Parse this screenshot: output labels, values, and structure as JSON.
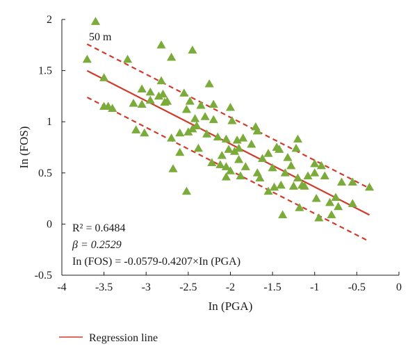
{
  "chart_data": {
    "type": "scatter",
    "xlabel": "In (PGA)",
    "ylabel": "In (FOS)",
    "xlim": [
      -4,
      0
    ],
    "ylim": [
      -0.5,
      2
    ],
    "xticks": [
      -4,
      -3.5,
      -3,
      -2.5,
      -2,
      -1.5,
      -1,
      -0.5,
      0
    ],
    "xtick_labels": [
      "-4",
      "-3.5",
      "-3",
      "-2.5",
      "-2",
      "-1.5",
      "-1",
      "-0.5",
      "0"
    ],
    "yticks": [
      -0.5,
      0,
      0.5,
      1,
      1.5,
      2
    ],
    "ytick_labels": [
      "-0.5",
      "0",
      "0.5",
      "1",
      "1.5",
      "2"
    ],
    "grid": false,
    "annotation_top": "50 m",
    "stats": {
      "r2": "R² = 0.6484",
      "beta": "β = 0.2529",
      "equation": "In (FOS) = -0.0579-0.4207×In (PGA)"
    },
    "legend": {
      "label": "Regression line",
      "position": "bottom-left"
    },
    "colors": {
      "points": "#7bab3a",
      "regression": "#d23a2a",
      "axis": "#1a1a1a"
    },
    "regression": {
      "intercept": -0.0579,
      "slope": -0.4207,
      "x_range": [
        -3.7,
        -0.35
      ],
      "band_offset": 0.26
    },
    "points": [
      {
        "x": -3.6,
        "y": 1.98
      },
      {
        "x": -3.7,
        "y": 1.61
      },
      {
        "x": -3.5,
        "y": 1.43
      },
      {
        "x": -3.5,
        "y": 1.15
      },
      {
        "x": -3.45,
        "y": 1.15
      },
      {
        "x": -3.4,
        "y": 1.13
      },
      {
        "x": -3.22,
        "y": 1.61
      },
      {
        "x": -3.15,
        "y": 1.18
      },
      {
        "x": -3.12,
        "y": 0.92
      },
      {
        "x": -3.05,
        "y": 1.32
      },
      {
        "x": -3.05,
        "y": 1.17
      },
      {
        "x": -3.02,
        "y": 0.89
      },
      {
        "x": -2.95,
        "y": 1.29
      },
      {
        "x": -2.95,
        "y": 1.21
      },
      {
        "x": -2.85,
        "y": 1.25
      },
      {
        "x": -2.82,
        "y": 1.75
      },
      {
        "x": -2.82,
        "y": 1.4
      },
      {
        "x": -2.8,
        "y": 1.27
      },
      {
        "x": -2.78,
        "y": 1.19
      },
      {
        "x": -2.75,
        "y": 1.2
      },
      {
        "x": -2.7,
        "y": 1.63
      },
      {
        "x": -2.7,
        "y": 0.84
      },
      {
        "x": -2.68,
        "y": 0.54
      },
      {
        "x": -2.6,
        "y": 0.7
      },
      {
        "x": -2.6,
        "y": 0.89
      },
      {
        "x": -2.55,
        "y": 1.28
      },
      {
        "x": -2.52,
        "y": 1.12
      },
      {
        "x": -2.52,
        "y": 0.32
      },
      {
        "x": -2.5,
        "y": 0.9
      },
      {
        "x": -2.48,
        "y": 1.2
      },
      {
        "x": -2.45,
        "y": 1.7
      },
      {
        "x": -2.45,
        "y": 0.93
      },
      {
        "x": -2.42,
        "y": 1.03
      },
      {
        "x": -2.4,
        "y": 0.96
      },
      {
        "x": -2.38,
        "y": 0.74
      },
      {
        "x": -2.35,
        "y": 1.16
      },
      {
        "x": -2.3,
        "y": 1.05
      },
      {
        "x": -2.28,
        "y": 0.88
      },
      {
        "x": -2.25,
        "y": 1.37
      },
      {
        "x": -2.22,
        "y": 0.6
      },
      {
        "x": -2.2,
        "y": 1.17
      },
      {
        "x": -2.2,
        "y": 1.02
      },
      {
        "x": -2.15,
        "y": 0.85
      },
      {
        "x": -2.12,
        "y": 0.58
      },
      {
        "x": -2.1,
        "y": 0.67
      },
      {
        "x": -2.05,
        "y": 0.83
      },
      {
        "x": -2.05,
        "y": 0.56
      },
      {
        "x": -2.05,
        "y": 0.46
      },
      {
        "x": -2.02,
        "y": 0.73
      },
      {
        "x": -2.0,
        "y": 1.14
      },
      {
        "x": -2.0,
        "y": 0.52
      },
      {
        "x": -1.98,
        "y": 1.01
      },
      {
        "x": -1.95,
        "y": 0.71
      },
      {
        "x": -1.92,
        "y": 0.82
      },
      {
        "x": -1.9,
        "y": 0.74
      },
      {
        "x": -1.9,
        "y": 0.63
      },
      {
        "x": -1.88,
        "y": 0.47
      },
      {
        "x": -1.85,
        "y": 0.84
      },
      {
        "x": -1.82,
        "y": 0.56
      },
      {
        "x": -1.75,
        "y": 0.78
      },
      {
        "x": -1.7,
        "y": 0.95
      },
      {
        "x": -1.68,
        "y": 0.91
      },
      {
        "x": -1.68,
        "y": 0.5
      },
      {
        "x": -1.65,
        "y": 0.45
      },
      {
        "x": -1.62,
        "y": 0.64
      },
      {
        "x": -1.55,
        "y": 0.69
      },
      {
        "x": -1.55,
        "y": 0.32
      },
      {
        "x": -1.5,
        "y": 0.55
      },
      {
        "x": -1.48,
        "y": 0.36
      },
      {
        "x": -1.45,
        "y": 0.75
      },
      {
        "x": -1.42,
        "y": 0.73
      },
      {
        "x": -1.4,
        "y": 0.38
      },
      {
        "x": -1.38,
        "y": 0.09
      },
      {
        "x": -1.35,
        "y": 0.5
      },
      {
        "x": -1.32,
        "y": 0.65
      },
      {
        "x": -1.28,
        "y": 0.57
      },
      {
        "x": -1.25,
        "y": 0.37
      },
      {
        "x": -1.22,
        "y": 0.74
      },
      {
        "x": -1.2,
        "y": 0.83
      },
      {
        "x": -1.2,
        "y": 0.45
      },
      {
        "x": -1.18,
        "y": 0.16
      },
      {
        "x": -1.15,
        "y": 0.38
      },
      {
        "x": -1.12,
        "y": 0.37
      },
      {
        "x": -1.08,
        "y": 0.47
      },
      {
        "x": -1.0,
        "y": 0.59
      },
      {
        "x": -1.0,
        "y": 0.5
      },
      {
        "x": -0.98,
        "y": 0.25
      },
      {
        "x": -0.95,
        "y": 0.06
      },
      {
        "x": -0.92,
        "y": 0.57
      },
      {
        "x": -0.88,
        "y": 0.47
      },
      {
        "x": -0.82,
        "y": 0.21
      },
      {
        "x": -0.8,
        "y": 0.09
      },
      {
        "x": -0.75,
        "y": 0.26
      },
      {
        "x": -0.72,
        "y": 0.17
      },
      {
        "x": -0.68,
        "y": 0.41
      },
      {
        "x": -0.55,
        "y": 0.2
      },
      {
        "x": -0.55,
        "y": 0.41
      },
      {
        "x": -0.35,
        "y": 0.36
      }
    ]
  }
}
